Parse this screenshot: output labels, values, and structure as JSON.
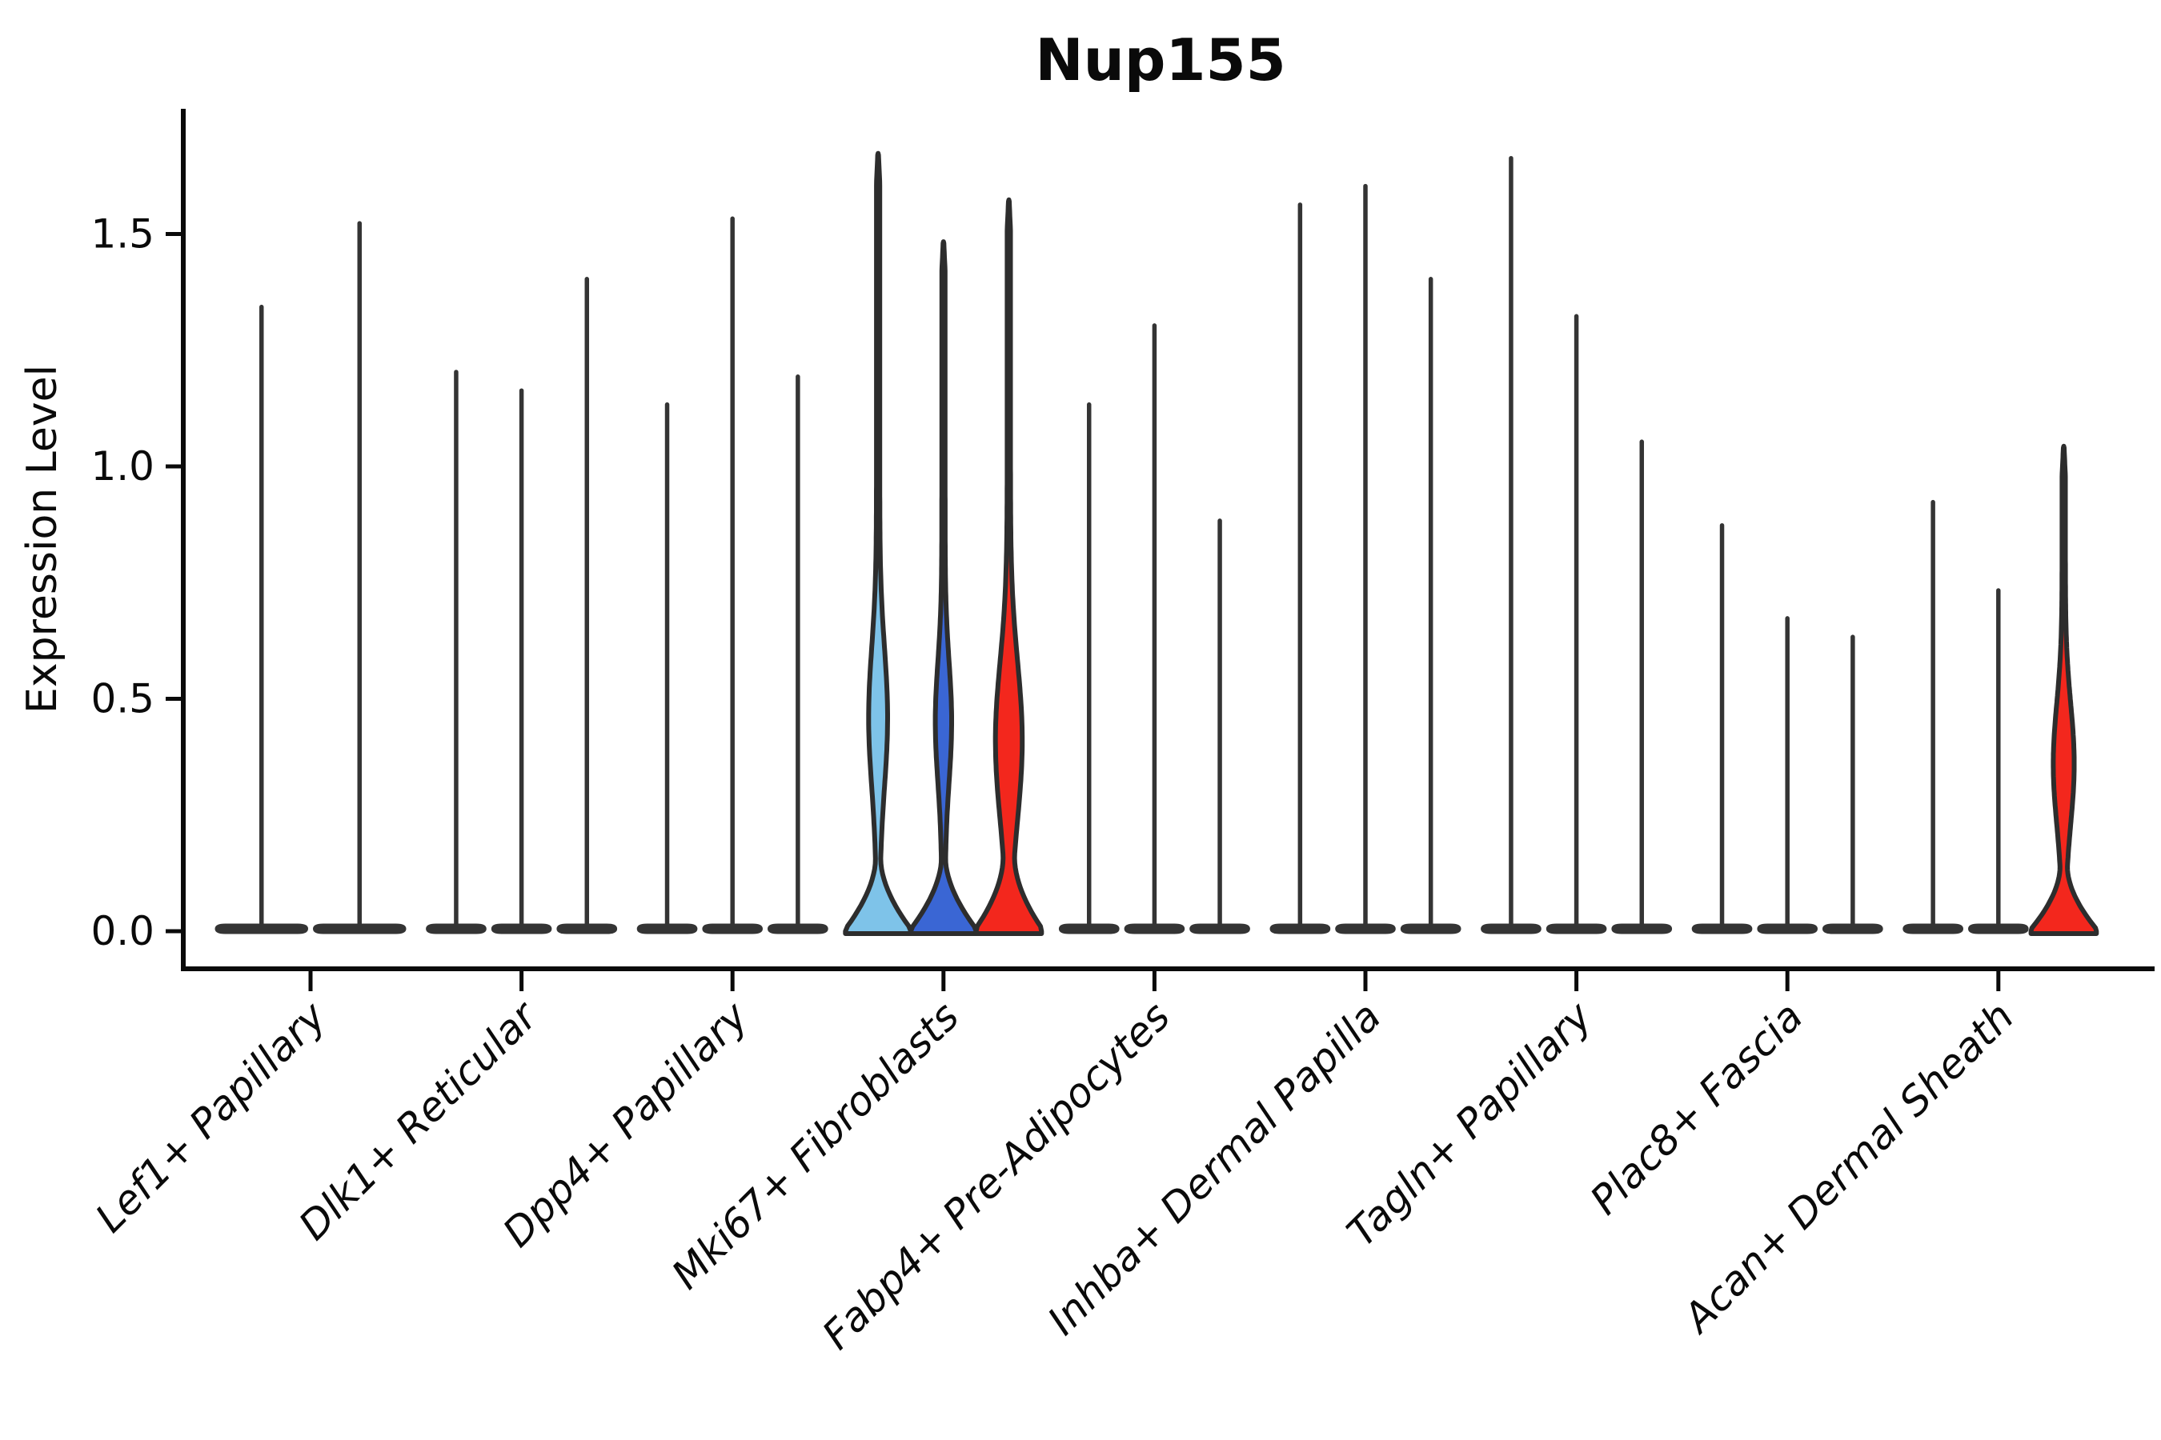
{
  "figure": {
    "title": "Nup155"
  },
  "chart_data": {
    "type": "violin",
    "title": "Nup155",
    "ylabel": "Expression Level",
    "xlabel": "",
    "ylim": [
      -0.08,
      1.77
    ],
    "yticks": [
      "0.0",
      "0.5",
      "1.0",
      "1.5"
    ],
    "ytick_values": [
      0.0,
      0.5,
      1.0,
      1.5
    ],
    "grid": "off",
    "legend": "none",
    "categories": [
      "Lef1+ Papillary",
      "Dlk1+ Reticular",
      "Dpp4+ Papillary",
      "Mki67+ Fibroblasts",
      "Fabp4+ Pre-Adipocytes",
      "Inhba+ Dermal Papilla",
      "Tagln+ Papillary",
      "Plac8+ Fascia",
      "Acan+ Dermal Sheath"
    ],
    "groups": [
      {
        "category": "Lef1+ Papillary",
        "violins": [
          {
            "max": 1.35,
            "fill": null
          },
          {
            "max": 1.53,
            "fill": null
          }
        ]
      },
      {
        "category": "Dlk1+ Reticular",
        "violins": [
          {
            "max": 1.21,
            "fill": null
          },
          {
            "max": 1.17,
            "fill": null
          },
          {
            "max": 1.41,
            "fill": null
          }
        ]
      },
      {
        "category": "Dpp4+ Papillary",
        "violins": [
          {
            "max": 1.14,
            "fill": null
          },
          {
            "max": 1.54,
            "fill": null
          },
          {
            "max": 1.2,
            "fill": null
          }
        ]
      },
      {
        "category": "Mki67+ Fibroblasts",
        "violins": [
          {
            "max": 1.67,
            "fill": "#7EC3E9",
            "bulge_center": 0.46,
            "bulge_amp": 0.24,
            "bulge_sigma": 0.15,
            "foot_top": 0.155
          },
          {
            "max": 1.48,
            "fill": "#3A66D4",
            "bulge_center": 0.45,
            "bulge_amp": 0.2,
            "bulge_sigma": 0.13,
            "foot_top": 0.155
          },
          {
            "max": 1.57,
            "fill": "#F3271D",
            "bulge_center": 0.41,
            "bulge_amp": 0.36,
            "bulge_sigma": 0.17,
            "foot_top": 0.165
          }
        ]
      },
      {
        "category": "Fabp4+ Pre-Adipocytes",
        "violins": [
          {
            "max": 1.14,
            "fill": null
          },
          {
            "max": 1.31,
            "fill": null
          },
          {
            "max": 0.89,
            "fill": null
          }
        ]
      },
      {
        "category": "Inhba+ Dermal Papilla",
        "violins": [
          {
            "max": 1.57,
            "fill": null
          },
          {
            "max": 1.61,
            "fill": null
          },
          {
            "max": 1.41,
            "fill": null
          }
        ]
      },
      {
        "category": "Tagln+ Papillary",
        "violins": [
          {
            "max": 1.67,
            "fill": null
          },
          {
            "max": 1.33,
            "fill": null
          },
          {
            "max": 1.06,
            "fill": null
          }
        ]
      },
      {
        "category": "Plac8+ Fascia",
        "violins": [
          {
            "max": 0.88,
            "fill": null
          },
          {
            "max": 0.68,
            "fill": null
          },
          {
            "max": 0.64,
            "fill": null
          }
        ]
      },
      {
        "category": "Acan+ Dermal Sheath",
        "violins": [
          {
            "max": 0.93,
            "fill": null
          },
          {
            "max": 0.74,
            "fill": null
          },
          {
            "max": 1.04,
            "fill": "#F3271D",
            "bulge_center": 0.36,
            "bulge_amp": 0.27,
            "bulge_sigma": 0.13,
            "foot_top": 0.14
          }
        ]
      }
    ],
    "colors": {
      "axis": "#0a0a0a",
      "violin_outline": "#2d2d2d",
      "plain_violin": "#343434",
      "highlight_lightblue": "#7EC3E9",
      "highlight_blue": "#3A66D4",
      "highlight_red": "#F3271D",
      "background": "#ffffff"
    }
  }
}
